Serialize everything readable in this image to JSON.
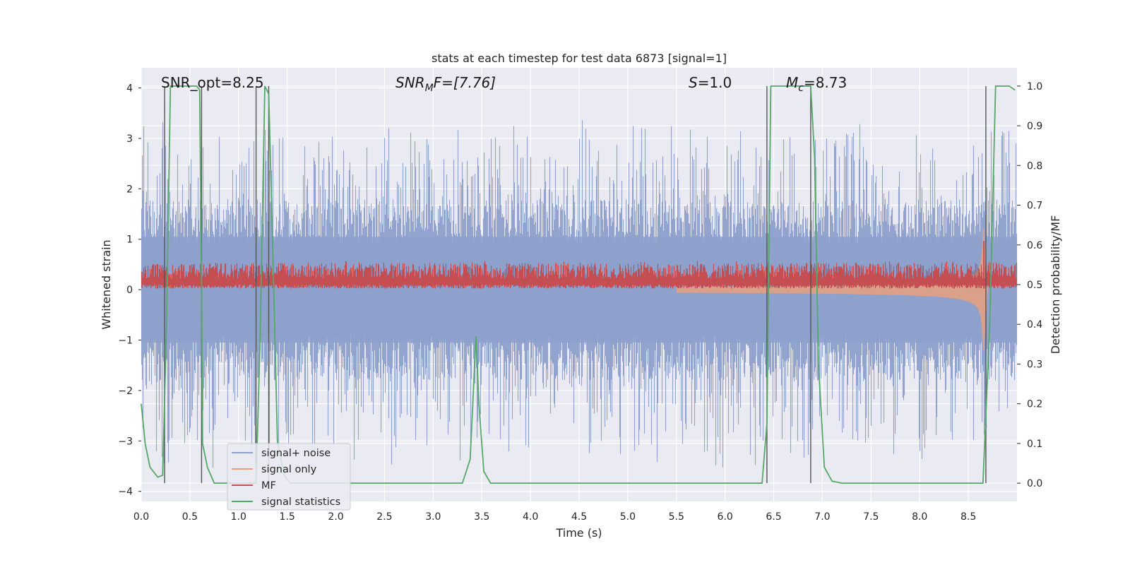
{
  "chart_data": {
    "type": "line",
    "title": "stats at each timestep for test data 6873 [signal=1]",
    "xlabel": "Time (s)",
    "ylabel_left": "Whitened strain",
    "ylabel_right": "Detection probability/MF",
    "xlim": [
      0.0,
      9.0
    ],
    "ylim_left": [
      -4.2,
      4.4
    ],
    "ylim_right": [
      -0.046,
      1.046
    ],
    "x_ticks": [
      "0.0",
      "0.5",
      "1.0",
      "1.5",
      "2.0",
      "2.5",
      "3.0",
      "3.5",
      "4.0",
      "4.5",
      "5.0",
      "5.5",
      "6.0",
      "6.5",
      "7.0",
      "7.5",
      "8.0",
      "8.5"
    ],
    "y_ticks_left": [
      "4",
      "3",
      "2",
      "1",
      "0",
      "−1",
      "−2",
      "−3",
      "−4"
    ],
    "y_ticks_right": [
      "1.0",
      "0.9",
      "0.8",
      "0.7",
      "0.6",
      "0.5",
      "0.4",
      "0.3",
      "0.2",
      "0.1",
      "0.0"
    ],
    "grid": true,
    "annotations": {
      "snr_opt": "SNR_opt=8.25",
      "snr_mf_symbol": "SNR",
      "snr_mf_sub": "M",
      "snr_mf_rest": "F=[7.76]",
      "s_symbol": "S",
      "s_rest": "=1.0",
      "mc_symbol": "M",
      "mc_sub": "c",
      "mc_rest": "=8.73"
    },
    "legend": {
      "position": "lower-left",
      "entries": [
        {
          "label": "signal+ noise",
          "color": "#8da0cb"
        },
        {
          "label": "signal only",
          "color": "#e8a07e"
        },
        {
          "label": "MF",
          "color": "#c44e52"
        },
        {
          "label": "signal statistics",
          "color": "#55a868"
        }
      ]
    },
    "series": [
      {
        "name": "signal statistics",
        "axis": "right",
        "color": "#55a868",
        "x": [
          0.0,
          0.04,
          0.09,
          0.17,
          0.22,
          0.26,
          0.3,
          0.35,
          0.42,
          0.5,
          0.57,
          0.6,
          0.62,
          0.63,
          0.68,
          0.75,
          0.8,
          1.0,
          1.1,
          1.18,
          1.22,
          1.27,
          1.31,
          1.35,
          1.4,
          1.47,
          1.53,
          1.6,
          2.0,
          2.5,
          3.0,
          3.3,
          3.38,
          3.44,
          3.47,
          3.52,
          3.59,
          3.7,
          4.0,
          4.5,
          5.0,
          5.5,
          6.0,
          6.38,
          6.43,
          6.47,
          6.5,
          6.58,
          6.7,
          6.8,
          6.88,
          6.92,
          6.96,
          7.02,
          7.1,
          7.2,
          7.5,
          8.0,
          8.5,
          8.65,
          8.72,
          8.78,
          8.85,
          8.92,
          8.98
        ],
        "values": [
          0.2,
          0.1,
          0.04,
          0.015,
          0.02,
          0.4,
          1.0,
          1.0,
          1.0,
          1.0,
          1.0,
          0.99,
          0.5,
          0.1,
          0.04,
          0.0,
          0.0,
          0.0,
          0.0,
          0.0,
          0.35,
          1.0,
          0.98,
          0.6,
          0.1,
          0.02,
          0.0,
          0.0,
          0.0,
          0.0,
          0.0,
          0.0,
          0.06,
          0.37,
          0.2,
          0.03,
          0.0,
          0.0,
          0.0,
          0.0,
          0.0,
          0.0,
          0.0,
          0.0,
          0.15,
          1.0,
          1.0,
          1.0,
          1.0,
          1.0,
          1.0,
          0.82,
          0.3,
          0.04,
          0.005,
          0.0,
          0.0,
          0.0,
          0.0,
          0.0,
          0.4,
          1.0,
          1.0,
          1.0,
          0.99
        ]
      },
      {
        "name": "MF",
        "axis": "right",
        "color": "#c44e52",
        "band": {
          "low": 0.49,
          "mean": 0.515,
          "high": 0.54,
          "max_spike": 0.61
        }
      },
      {
        "name": "signal+ noise",
        "axis": "left",
        "color": "#8da0cb",
        "band": {
          "min": -3.7,
          "max": 3.5,
          "typical_abs": 1.4
        }
      },
      {
        "name": "signal only",
        "axis": "left",
        "color": "#e8a07e",
        "chirp": {
          "start": 0.0,
          "merger": 8.65,
          "end": 8.7,
          "peak_amplitude": 1.5
        }
      }
    ],
    "vertical_lines": [
      0.24,
      0.62,
      1.18,
      1.31,
      6.43,
      6.88,
      8.68
    ]
  }
}
